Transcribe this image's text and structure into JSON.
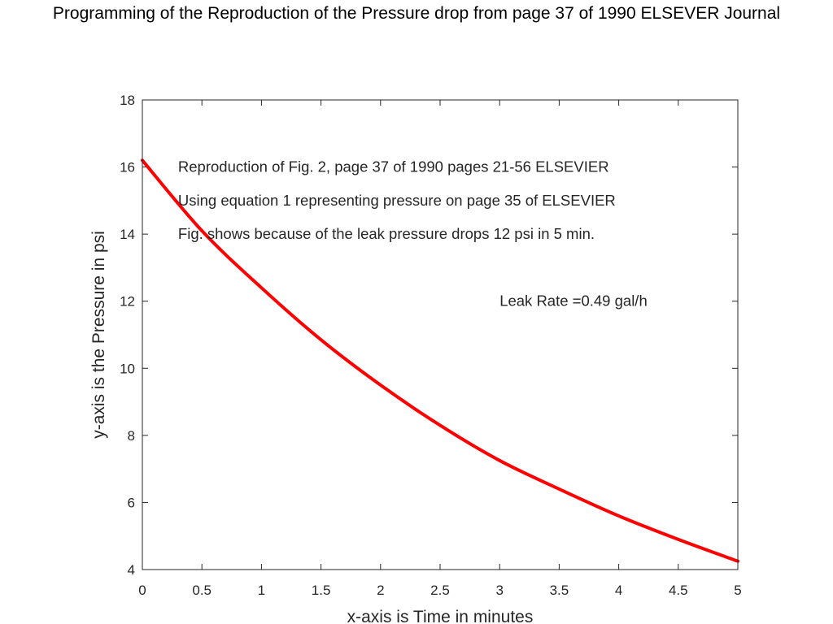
{
  "slide": {
    "title": "Programming of the Reproduction of the Pressure drop from page 37 of 1990 ELSEVER Journal"
  },
  "chart_data": {
    "type": "line",
    "xlabel": "x-axis is Time in minutes",
    "ylabel": "y-axis is the Pressure in psi",
    "xlim": [
      0,
      5
    ],
    "ylim": [
      4,
      18
    ],
    "x_ticks": [
      "0",
      "0.5",
      "1",
      "1.5",
      "2",
      "2.5",
      "3",
      "3.5",
      "4",
      "4.5",
      "5"
    ],
    "y_ticks": [
      "4",
      "6",
      "8",
      "10",
      "12",
      "14",
      "16",
      "18"
    ],
    "grid": false,
    "series": [
      {
        "color": "#ff0000",
        "x": [
          0,
          0.5,
          1,
          1.5,
          2,
          2.5,
          3,
          3.5,
          4,
          4.5,
          5
        ],
        "y": [
          16.2,
          14.1,
          12.4,
          10.85,
          9.5,
          8.3,
          7.25,
          6.4,
          5.6,
          4.9,
          4.25
        ]
      }
    ],
    "annotations": [
      {
        "text": "Reproduction of Fig. 2, page 37 of 1990 pages 21-56 ELSEVIER",
        "x": 0.3,
        "y": 16
      },
      {
        "text": "Using equation 1 representing pressure on page 35 of ELSEVIER",
        "x": 0.3,
        "y": 15
      },
      {
        "text": "Fig. shows because of the leak pressure drops 12 psi in 5 min.",
        "x": 0.3,
        "y": 14
      },
      {
        "text": "Leak Rate =0.49 gal/h",
        "x": 3,
        "y": 12
      }
    ]
  }
}
